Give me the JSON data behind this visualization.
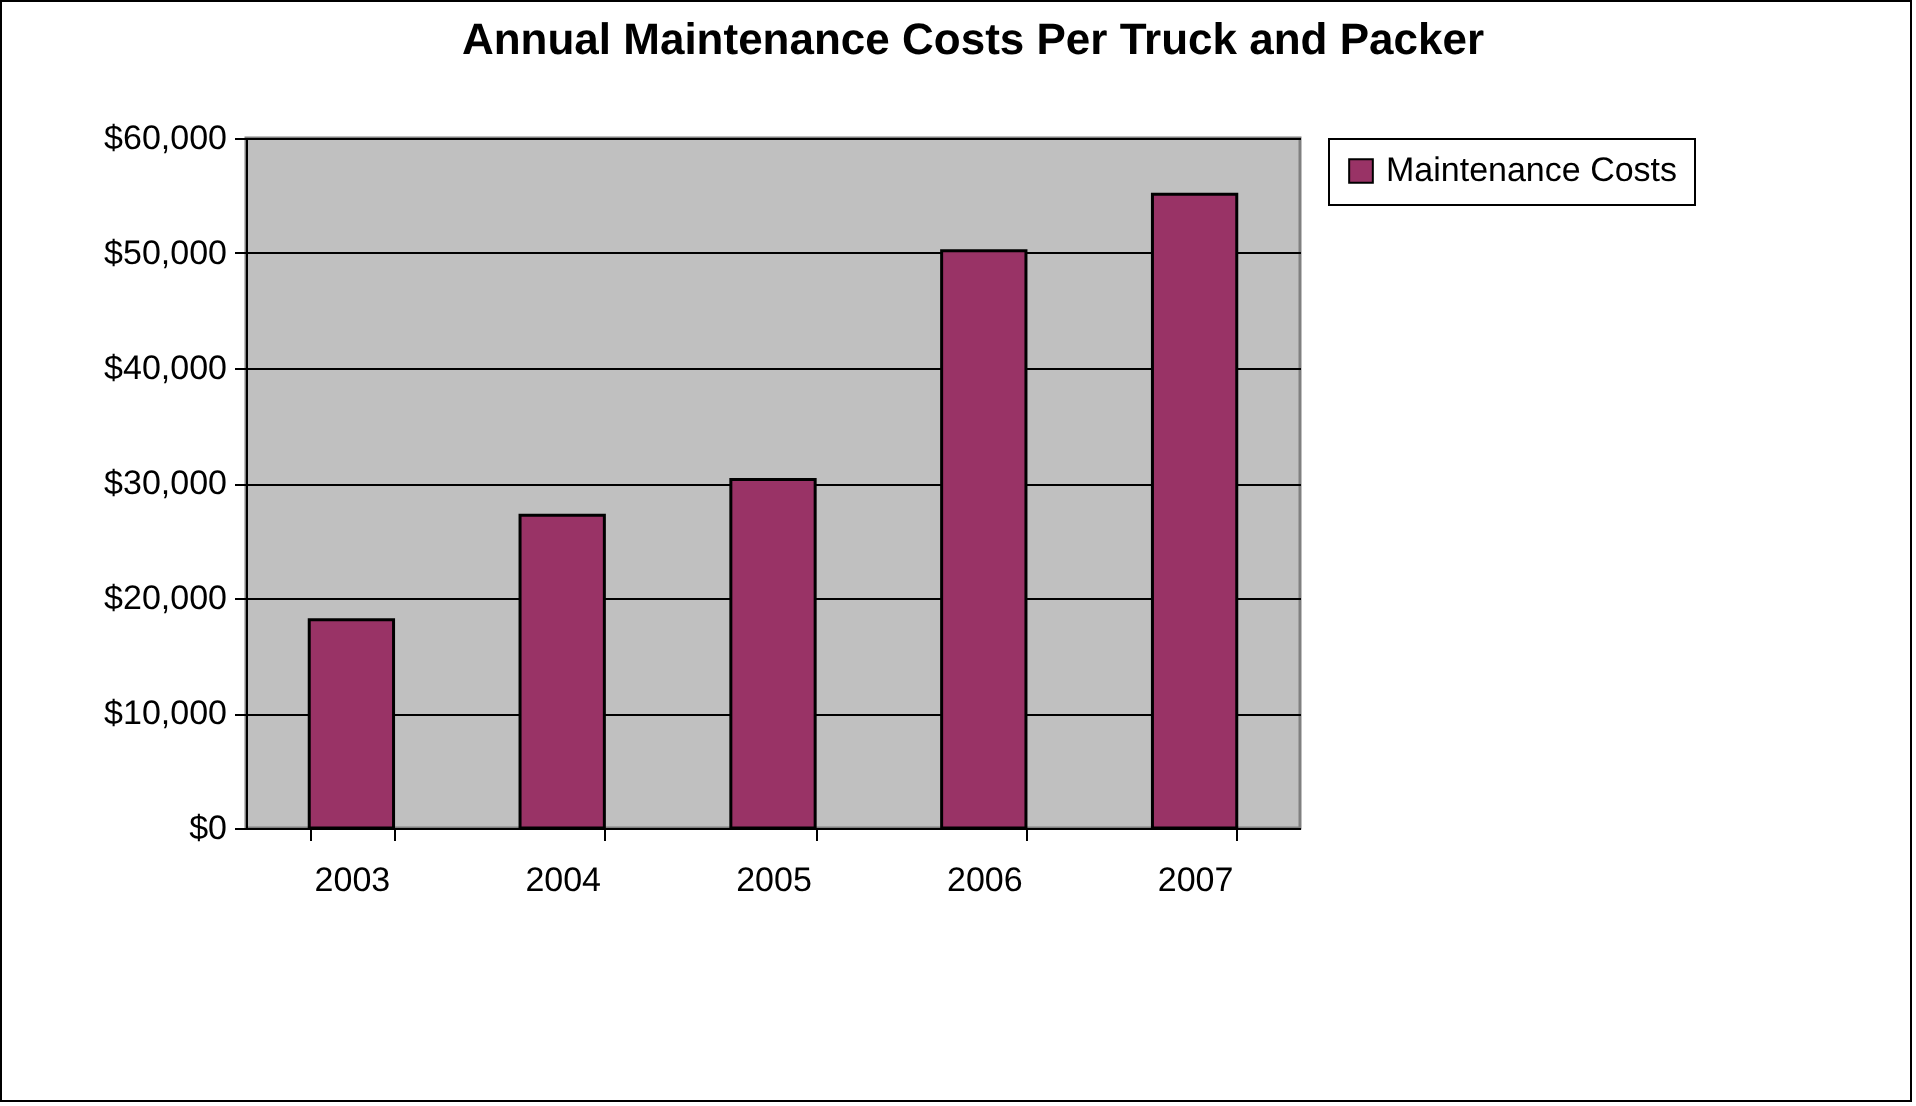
{
  "chart_data": {
    "type": "bar",
    "title": "Annual Maintenance Costs Per Truck and Packer",
    "categories": [
      "2003",
      "2004",
      "2005",
      "2006",
      "2007"
    ],
    "series": [
      {
        "name": "Maintenance Costs",
        "color": "#993366",
        "values": [
          18100,
          27200,
          30300,
          50200,
          55100
        ]
      }
    ],
    "ylim": [
      0,
      60000
    ],
    "yticks": [
      {
        "value": 0,
        "label": "$0"
      },
      {
        "value": 10000,
        "label": "$10,000"
      },
      {
        "value": 20000,
        "label": "$20,000"
      },
      {
        "value": 30000,
        "label": "$30,000"
      },
      {
        "value": 40000,
        "label": "$40,000"
      },
      {
        "value": 50000,
        "label": "$50,000"
      },
      {
        "value": 60000,
        "label": "$60,000"
      }
    ],
    "grid": "y",
    "legend": "right"
  }
}
